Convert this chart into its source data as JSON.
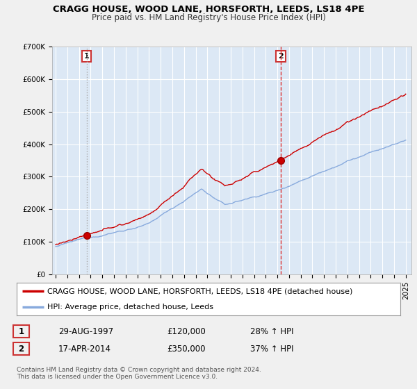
{
  "title": "CRAGG HOUSE, WOOD LANE, HORSFORTH, LEEDS, LS18 4PE",
  "subtitle": "Price paid vs. HM Land Registry's House Price Index (HPI)",
  "ylim": [
    0,
    700000
  ],
  "yticks": [
    0,
    100000,
    200000,
    300000,
    400000,
    500000,
    600000,
    700000
  ],
  "ytick_labels": [
    "£0",
    "£100K",
    "£200K",
    "£300K",
    "£400K",
    "£500K",
    "£600K",
    "£700K"
  ],
  "bg_color": "#f0f0f0",
  "plot_bg_color": "#dce8f5",
  "red_line_color": "#cc0000",
  "blue_line_color": "#88aadd",
  "vline1_color": "#aaaaaa",
  "vline1_style": "dotted",
  "vline2_color": "#dd3333",
  "vline2_style": "dashed",
  "marker_color": "#cc0000",
  "purchase1_year": 1997.66,
  "purchase1_price": 120000,
  "purchase1_label": "1",
  "purchase2_year": 2014.29,
  "purchase2_price": 350000,
  "purchase2_label": "2",
  "legend_line1": "CRAGG HOUSE, WOOD LANE, HORSFORTH, LEEDS, LS18 4PE (detached house)",
  "legend_line2": "HPI: Average price, detached house, Leeds",
  "table_row1": [
    "1",
    "29-AUG-1997",
    "£120,000",
    "28% ↑ HPI"
  ],
  "table_row2": [
    "2",
    "17-APR-2014",
    "£350,000",
    "37% ↑ HPI"
  ],
  "footer": "Contains HM Land Registry data © Crown copyright and database right 2024.\nThis data is licensed under the Open Government Licence v3.0.",
  "title_fontsize": 9.5,
  "subtitle_fontsize": 8.5,
  "tick_fontsize": 7.5,
  "legend_fontsize": 8,
  "table_fontsize": 8.5,
  "footer_fontsize": 6.5
}
